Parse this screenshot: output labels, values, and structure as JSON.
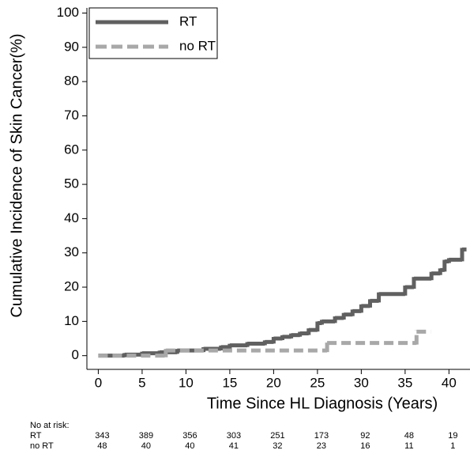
{
  "chart_data": {
    "type": "step",
    "xlabel": "Time Since HL Diagnosis (Years)",
    "ylabel": "Cumulative Incidence of Skin Cancer(%)",
    "xlim": [
      -1.3,
      42.4
    ],
    "ylim": [
      -4,
      101.5
    ],
    "xticks": [
      0,
      5,
      10,
      15,
      20,
      25,
      30,
      35,
      40
    ],
    "yticks": [
      0,
      10,
      20,
      30,
      40,
      50,
      60,
      70,
      80,
      90,
      100
    ],
    "legend": "upper-left",
    "series": [
      {
        "name": "RT",
        "color": "#606060",
        "style": "solid",
        "x": [
          0,
          3,
          5,
          7,
          9,
          12,
          14,
          15,
          17,
          19,
          20,
          21,
          22,
          23,
          24,
          25,
          25.5,
          27,
          28,
          29,
          30,
          31,
          32,
          35,
          36,
          38,
          39,
          39.5,
          40,
          41.5,
          42
        ],
        "values": [
          0,
          0.3,
          0.7,
          1,
          1.5,
          2,
          2.5,
          3,
          3.5,
          4,
          5,
          5.5,
          6,
          6.5,
          7.5,
          9.5,
          10,
          11,
          12,
          13,
          14.5,
          16,
          18,
          20,
          22.5,
          24,
          25,
          27.5,
          28,
          31,
          31
        ]
      },
      {
        "name": "no RT",
        "color": "#a8a8a8",
        "style": "dashed",
        "x": [
          0,
          7.7,
          26.1,
          36.3,
          37.9
        ],
        "values": [
          0,
          1.5,
          3.7,
          7,
          7
        ]
      }
    ],
    "risk_table": {
      "title": "No at risk:",
      "rows": [
        {
          "name": "RT",
          "values": [
            343,
            389,
            356,
            303,
            251,
            173,
            92,
            48,
            19
          ]
        },
        {
          "name": "no RT",
          "values": [
            48,
            40,
            40,
            41,
            32,
            23,
            16,
            11,
            1
          ]
        }
      ]
    }
  }
}
